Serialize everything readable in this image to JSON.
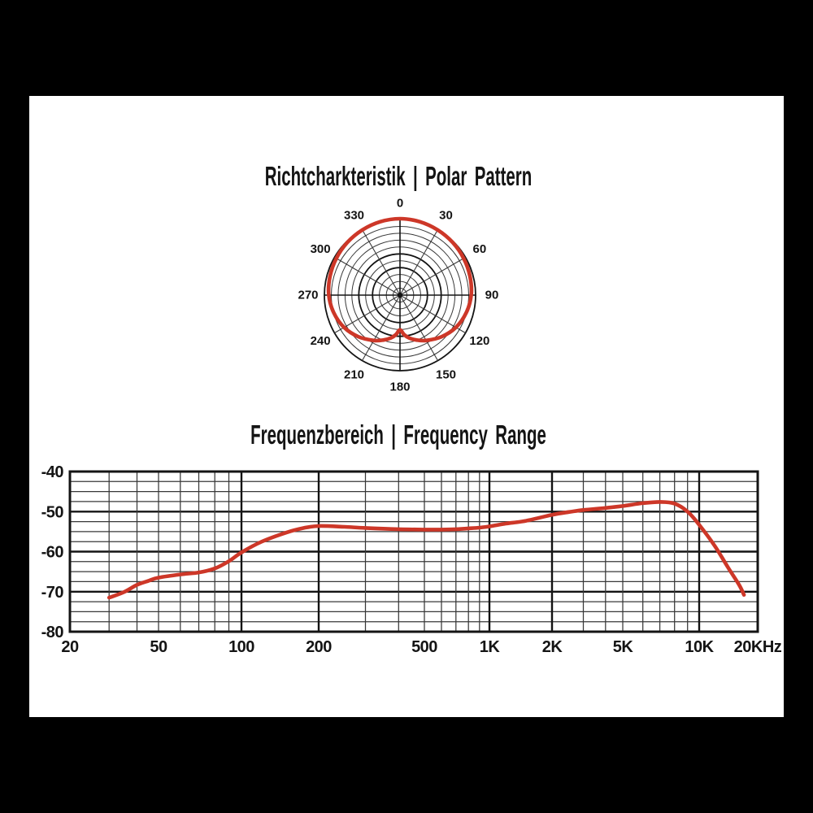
{
  "colors": {
    "background": "#000000",
    "panel": "#ffffff",
    "grid_major": "#141414",
    "grid_minor": "#383838",
    "curve": "#cd3728",
    "text": "#141414"
  },
  "chart_data": [
    {
      "type": "polar",
      "title": "Richtcharkteristik | Polar Pattern",
      "angle_tick_labels": [
        "0",
        "30",
        "60",
        "90",
        "120",
        "150",
        "180",
        "210",
        "240",
        "270",
        "300",
        "330"
      ],
      "angle_tick_degrees": [
        0,
        30,
        60,
        90,
        120,
        150,
        180,
        210,
        240,
        270,
        300,
        330
      ],
      "rings": 11,
      "thick_rings": [
        4,
        6,
        11
      ],
      "spoke_step_deg": 30,
      "series": [
        {
          "name": "polar-response",
          "points_deg_r": [
            [
              0,
              1.0
            ],
            [
              15,
              0.995
            ],
            [
              30,
              0.985
            ],
            [
              45,
              0.975
            ],
            [
              60,
              0.962
            ],
            [
              75,
              0.948
            ],
            [
              90,
              0.932
            ],
            [
              105,
              0.897
            ],
            [
              120,
              0.845
            ],
            [
              135,
              0.77
            ],
            [
              150,
              0.685
            ],
            [
              160,
              0.625
            ],
            [
              168,
              0.573
            ],
            [
              174,
              0.52
            ],
            [
              180,
              0.455
            ],
            [
              186,
              0.52
            ],
            [
              192,
              0.573
            ],
            [
              200,
              0.625
            ],
            [
              210,
              0.685
            ],
            [
              225,
              0.77
            ],
            [
              240,
              0.845
            ],
            [
              255,
              0.897
            ],
            [
              270,
              0.932
            ],
            [
              285,
              0.948
            ],
            [
              300,
              0.962
            ],
            [
              315,
              0.975
            ],
            [
              330,
              0.985
            ],
            [
              345,
              0.995
            ]
          ]
        }
      ]
    },
    {
      "type": "line",
      "title": "Frequenzbereich | Frequency Range",
      "x_scale": "log",
      "x_range_hz": [
        20,
        20000
      ],
      "x_ticks": [
        {
          "label": "20",
          "freq": 20
        },
        {
          "label": "50",
          "freq": 50
        },
        {
          "label": "100",
          "freq": 100
        },
        {
          "label": "200",
          "freq": 200
        },
        {
          "label": "500",
          "freq": 500
        },
        {
          "label": "1K",
          "freq": 1000
        },
        {
          "label": "2K",
          "freq": 2000
        },
        {
          "label": "5K",
          "freq": 5000
        },
        {
          "label": "10K",
          "freq": 10000
        },
        {
          "label": "20KHz",
          "freq": 20000
        }
      ],
      "major_gridline_freqs": [
        100,
        200,
        1000,
        2000,
        10000
      ],
      "minor_gridline_freqs": [
        30,
        40,
        50,
        60,
        70,
        80,
        90,
        300,
        400,
        500,
        600,
        700,
        800,
        900,
        3000,
        4000,
        5000,
        6000,
        7000,
        8000,
        9000
      ],
      "y_ticks_db": [
        -40,
        -50,
        -60,
        -70,
        -80
      ],
      "y_minor_step_db": 2.5,
      "ylim": [
        -80,
        -40
      ],
      "grid": true,
      "series": [
        {
          "name": "frequency-response",
          "points_hz_db": [
            [
              30,
              -71.5
            ],
            [
              35,
              -70.1
            ],
            [
              40,
              -68.3
            ],
            [
              45,
              -67.3
            ],
            [
              50,
              -66.5
            ],
            [
              60,
              -65.7
            ],
            [
              70,
              -65.2
            ],
            [
              80,
              -64.2
            ],
            [
              90,
              -62.4
            ],
            [
              100,
              -60.2
            ],
            [
              120,
              -57.5
            ],
            [
              150,
              -55.2
            ],
            [
              175,
              -54.1
            ],
            [
              200,
              -53.6
            ],
            [
              250,
              -53.8
            ],
            [
              300,
              -54.1
            ],
            [
              400,
              -54.4
            ],
            [
              500,
              -54.5
            ],
            [
              600,
              -54.5
            ],
            [
              700,
              -54.4
            ],
            [
              800,
              -54.2
            ],
            [
              900,
              -54.0
            ],
            [
              1000,
              -53.7
            ],
            [
              1200,
              -53.0
            ],
            [
              1500,
              -52.3
            ],
            [
              2000,
              -50.8
            ],
            [
              2500,
              -50.1
            ],
            [
              3000,
              -49.6
            ],
            [
              4000,
              -49.1
            ],
            [
              5000,
              -48.6
            ],
            [
              6000,
              -47.9
            ],
            [
              7000,
              -47.6
            ],
            [
              8000,
              -48.0
            ],
            [
              9000,
              -50.0
            ],
            [
              10000,
              -53.3
            ],
            [
              12000,
              -58.5
            ],
            [
              14000,
              -63.8
            ],
            [
              16000,
              -68.2
            ],
            [
              17000,
              -70.8
            ]
          ]
        }
      ]
    }
  ]
}
